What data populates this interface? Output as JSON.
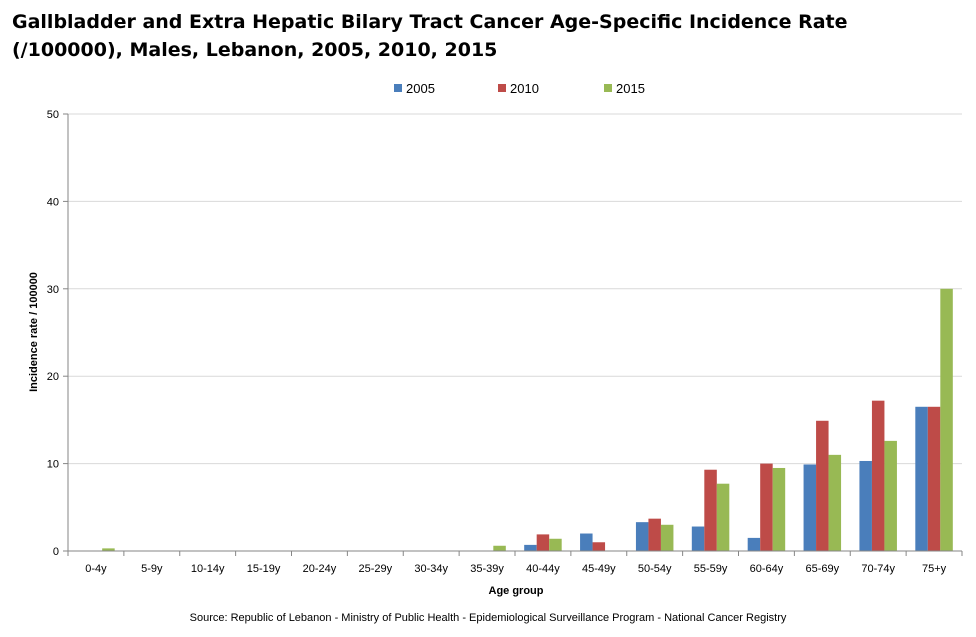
{
  "chart_data": {
    "type": "bar",
    "title_line1": "Gallbladder and Extra Hepatic Bilary Tract Cancer Age-Specific Incidence Rate",
    "title_line2": "(/100000), Males, Lebanon, 2005, 2010, 2015",
    "xlabel": "Age group",
    "ylabel": "Incidence rate / 100000",
    "ylim": [
      0,
      50
    ],
    "yticks": [
      0,
      10,
      20,
      30,
      40,
      50
    ],
    "grid": true,
    "legend_position": "top-center",
    "categories": [
      "0-4y",
      "5-9y",
      "10-14y",
      "15-19y",
      "20-24y",
      "25-29y",
      "30-34y",
      "35-39y",
      "40-44y",
      "45-49y",
      "50-54y",
      "55-59y",
      "60-64y",
      "65-69y",
      "70-74y",
      "75+y"
    ],
    "series": [
      {
        "name": "2005",
        "color": "#4a7ebb",
        "values": [
          0,
          0,
          0,
          0,
          0,
          0,
          0,
          0,
          0.7,
          2.0,
          3.3,
          2.8,
          1.5,
          9.9,
          10.3,
          16.5
        ]
      },
      {
        "name": "2010",
        "color": "#be4b48",
        "values": [
          0,
          0,
          0,
          0,
          0,
          0,
          0,
          0,
          1.9,
          1.0,
          3.7,
          9.3,
          10.0,
          14.9,
          17.2,
          16.5
        ]
      },
      {
        "name": "2015",
        "color": "#98b954",
        "values": [
          0.3,
          0,
          0,
          0,
          0,
          0,
          0,
          0.6,
          1.4,
          0,
          3.0,
          7.7,
          9.5,
          11.0,
          12.6,
          30.0
        ]
      }
    ],
    "source": "Source: Republic of Lebanon - Ministry of Public Health - Epidemiological Surveillance Program - National Cancer Registry"
  }
}
